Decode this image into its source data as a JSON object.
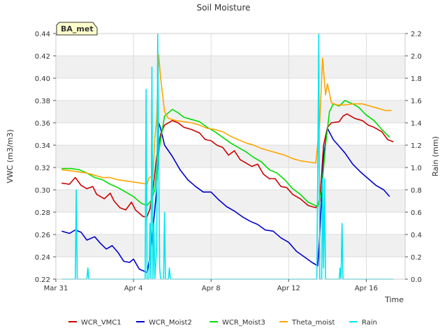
{
  "chart_data": {
    "type": "line",
    "title": "Soil Moisture",
    "xlabel": "Time",
    "ylabel": "VWC (m3/m3)",
    "y2label": "Rain (mm)",
    "badge": "BA_met",
    "x_unit": "days since Mar 31",
    "xlim": [
      0,
      18
    ],
    "ylim": [
      0.22,
      0.44
    ],
    "y2lim": [
      0.0,
      2.2
    ],
    "x_ticks": [
      {
        "x": 0,
        "label": "Mar 31"
      },
      {
        "x": 4,
        "label": "Apr 4"
      },
      {
        "x": 8,
        "label": "Apr 8"
      },
      {
        "x": 12,
        "label": "Apr 12"
      },
      {
        "x": 16,
        "label": "Apr 16"
      }
    ],
    "y_ticks": [
      "0.22",
      "0.24",
      "0.26",
      "0.28",
      "0.30",
      "0.32",
      "0.34",
      "0.36",
      "0.38",
      "0.40",
      "0.42",
      "0.44"
    ],
    "y2_ticks": [
      "0.0",
      "0.2",
      "0.4",
      "0.6",
      "0.8",
      "1.0",
      "1.2",
      "1.4",
      "1.6",
      "1.8",
      "2.0",
      "2.2"
    ],
    "grid": true,
    "legend_position": "bottom",
    "series": [
      {
        "name": "WCR_VMC1",
        "color": "#cc0000",
        "axis": "left",
        "points": [
          [
            0.3,
            0.306
          ],
          [
            0.7,
            0.305
          ],
          [
            1.0,
            0.311
          ],
          [
            1.3,
            0.304
          ],
          [
            1.6,
            0.301
          ],
          [
            1.9,
            0.303
          ],
          [
            2.1,
            0.296
          ],
          [
            2.5,
            0.292
          ],
          [
            2.8,
            0.297
          ],
          [
            3.0,
            0.29
          ],
          [
            3.3,
            0.284
          ],
          [
            3.6,
            0.282
          ],
          [
            3.9,
            0.289
          ],
          [
            4.1,
            0.282
          ],
          [
            4.5,
            0.276
          ],
          [
            4.7,
            0.276
          ],
          [
            4.85,
            0.283
          ],
          [
            5.0,
            0.3
          ],
          [
            5.2,
            0.33
          ],
          [
            5.4,
            0.35
          ],
          [
            5.6,
            0.358
          ],
          [
            6.0,
            0.362
          ],
          [
            6.3,
            0.36
          ],
          [
            6.6,
            0.356
          ],
          [
            7.0,
            0.354
          ],
          [
            7.4,
            0.351
          ],
          [
            7.7,
            0.345
          ],
          [
            8.0,
            0.344
          ],
          [
            8.3,
            0.34
          ],
          [
            8.6,
            0.338
          ],
          [
            8.9,
            0.331
          ],
          [
            9.2,
            0.335
          ],
          [
            9.5,
            0.327
          ],
          [
            9.8,
            0.324
          ],
          [
            10.1,
            0.321
          ],
          [
            10.4,
            0.323
          ],
          [
            10.7,
            0.314
          ],
          [
            11.0,
            0.31
          ],
          [
            11.3,
            0.31
          ],
          [
            11.6,
            0.303
          ],
          [
            11.9,
            0.302
          ],
          [
            12.2,
            0.296
          ],
          [
            12.6,
            0.292
          ],
          [
            13.0,
            0.286
          ],
          [
            13.4,
            0.284
          ],
          [
            13.6,
            0.29
          ],
          [
            13.8,
            0.34
          ],
          [
            14.0,
            0.356
          ],
          [
            14.2,
            0.36
          ],
          [
            14.6,
            0.361
          ],
          [
            14.8,
            0.366
          ],
          [
            15.0,
            0.368
          ],
          [
            15.4,
            0.364
          ],
          [
            15.8,
            0.362
          ],
          [
            16.1,
            0.358
          ],
          [
            16.4,
            0.356
          ],
          [
            16.8,
            0.352
          ],
          [
            17.1,
            0.345
          ],
          [
            17.4,
            0.343
          ]
        ]
      },
      {
        "name": "WCR_Moist2",
        "color": "#0000cc",
        "axis": "left",
        "points": [
          [
            0.3,
            0.263
          ],
          [
            0.7,
            0.261
          ],
          [
            1.0,
            0.264
          ],
          [
            1.3,
            0.262
          ],
          [
            1.6,
            0.255
          ],
          [
            2.0,
            0.258
          ],
          [
            2.3,
            0.252
          ],
          [
            2.6,
            0.247
          ],
          [
            2.9,
            0.25
          ],
          [
            3.2,
            0.244
          ],
          [
            3.5,
            0.236
          ],
          [
            3.8,
            0.235
          ],
          [
            4.0,
            0.238
          ],
          [
            4.3,
            0.229
          ],
          [
            4.7,
            0.226
          ],
          [
            4.85,
            0.24
          ],
          [
            5.0,
            0.265
          ],
          [
            5.2,
            0.3
          ],
          [
            5.3,
            0.36
          ],
          [
            5.4,
            0.355
          ],
          [
            5.6,
            0.34
          ],
          [
            6.0,
            0.33
          ],
          [
            6.4,
            0.318
          ],
          [
            6.8,
            0.309
          ],
          [
            7.2,
            0.303
          ],
          [
            7.6,
            0.298
          ],
          [
            8.0,
            0.298
          ],
          [
            8.4,
            0.291
          ],
          [
            8.8,
            0.285
          ],
          [
            9.2,
            0.281
          ],
          [
            9.6,
            0.276
          ],
          [
            10.0,
            0.272
          ],
          [
            10.4,
            0.269
          ],
          [
            10.8,
            0.264
          ],
          [
            11.2,
            0.263
          ],
          [
            11.6,
            0.257
          ],
          [
            12.0,
            0.253
          ],
          [
            12.4,
            0.245
          ],
          [
            12.8,
            0.24
          ],
          [
            13.2,
            0.235
          ],
          [
            13.5,
            0.232
          ],
          [
            13.6,
            0.26
          ],
          [
            13.8,
            0.33
          ],
          [
            14.0,
            0.355
          ],
          [
            14.3,
            0.345
          ],
          [
            14.6,
            0.339
          ],
          [
            14.9,
            0.333
          ],
          [
            15.3,
            0.323
          ],
          [
            15.7,
            0.316
          ],
          [
            16.1,
            0.31
          ],
          [
            16.5,
            0.304
          ],
          [
            16.9,
            0.3
          ],
          [
            17.2,
            0.294
          ]
        ]
      },
      {
        "name": "WCR_Moist3",
        "color": "#00dd00",
        "axis": "left",
        "points": [
          [
            0.3,
            0.319
          ],
          [
            0.8,
            0.319
          ],
          [
            1.2,
            0.318
          ],
          [
            1.6,
            0.315
          ],
          [
            2.0,
            0.311
          ],
          [
            2.4,
            0.309
          ],
          [
            2.8,
            0.305
          ],
          [
            3.2,
            0.302
          ],
          [
            3.6,
            0.298
          ],
          [
            4.0,
            0.294
          ],
          [
            4.4,
            0.288
          ],
          [
            4.7,
            0.286
          ],
          [
            4.9,
            0.29
          ],
          [
            5.1,
            0.3
          ],
          [
            5.2,
            0.32
          ],
          [
            5.4,
            0.345
          ],
          [
            5.6,
            0.366
          ],
          [
            6.0,
            0.372
          ],
          [
            6.3,
            0.369
          ],
          [
            6.6,
            0.365
          ],
          [
            7.0,
            0.363
          ],
          [
            7.4,
            0.361
          ],
          [
            7.8,
            0.356
          ],
          [
            8.2,
            0.352
          ],
          [
            8.6,
            0.347
          ],
          [
            9.0,
            0.342
          ],
          [
            9.4,
            0.338
          ],
          [
            9.8,
            0.334
          ],
          [
            10.2,
            0.329
          ],
          [
            10.6,
            0.325
          ],
          [
            11.0,
            0.318
          ],
          [
            11.4,
            0.315
          ],
          [
            11.8,
            0.309
          ],
          [
            12.2,
            0.301
          ],
          [
            12.6,
            0.296
          ],
          [
            13.0,
            0.289
          ],
          [
            13.5,
            0.285
          ],
          [
            13.7,
            0.3
          ],
          [
            13.9,
            0.34
          ],
          [
            14.1,
            0.37
          ],
          [
            14.3,
            0.377
          ],
          [
            14.6,
            0.375
          ],
          [
            14.9,
            0.38
          ],
          [
            15.3,
            0.377
          ],
          [
            15.6,
            0.374
          ],
          [
            16.0,
            0.367
          ],
          [
            16.4,
            0.362
          ],
          [
            16.8,
            0.354
          ],
          [
            17.2,
            0.347
          ]
        ]
      },
      {
        "name": "Theta_moist",
        "color": "#ffa500",
        "axis": "left",
        "points": [
          [
            0.3,
            0.318
          ],
          [
            0.8,
            0.317
          ],
          [
            1.2,
            0.316
          ],
          [
            1.6,
            0.315
          ],
          [
            2.0,
            0.313
          ],
          [
            2.4,
            0.311
          ],
          [
            2.8,
            0.311
          ],
          [
            3.2,
            0.309
          ],
          [
            3.6,
            0.308
          ],
          [
            4.0,
            0.307
          ],
          [
            4.4,
            0.306
          ],
          [
            4.7,
            0.305
          ],
          [
            4.8,
            0.311
          ],
          [
            5.0,
            0.312
          ],
          [
            5.1,
            0.346
          ],
          [
            5.2,
            0.365
          ],
          [
            5.3,
            0.421
          ],
          [
            5.4,
            0.4
          ],
          [
            5.6,
            0.37
          ],
          [
            5.8,
            0.364
          ],
          [
            6.2,
            0.362
          ],
          [
            6.6,
            0.361
          ],
          [
            7.0,
            0.36
          ],
          [
            7.4,
            0.358
          ],
          [
            7.8,
            0.355
          ],
          [
            8.2,
            0.354
          ],
          [
            8.6,
            0.352
          ],
          [
            9.0,
            0.348
          ],
          [
            9.4,
            0.345
          ],
          [
            9.8,
            0.342
          ],
          [
            10.2,
            0.34
          ],
          [
            10.6,
            0.337
          ],
          [
            11.0,
            0.335
          ],
          [
            11.4,
            0.333
          ],
          [
            11.8,
            0.331
          ],
          [
            12.2,
            0.328
          ],
          [
            12.6,
            0.326
          ],
          [
            13.0,
            0.325
          ],
          [
            13.4,
            0.324
          ],
          [
            13.6,
            0.36
          ],
          [
            13.75,
            0.418
          ],
          [
            13.9,
            0.385
          ],
          [
            14.0,
            0.395
          ],
          [
            14.2,
            0.378
          ],
          [
            14.5,
            0.376
          ],
          [
            14.9,
            0.376
          ],
          [
            15.3,
            0.377
          ],
          [
            15.8,
            0.377
          ],
          [
            16.2,
            0.375
          ],
          [
            16.6,
            0.373
          ],
          [
            17.0,
            0.371
          ],
          [
            17.3,
            0.371
          ]
        ]
      },
      {
        "name": "Rain",
        "color": "#00e5ee",
        "axis": "right",
        "points": [
          [
            0.3,
            0.0
          ],
          [
            1.0,
            0.0
          ],
          [
            1.05,
            0.8
          ],
          [
            1.1,
            0.0
          ],
          [
            1.6,
            0.0
          ],
          [
            1.65,
            0.1
          ],
          [
            1.7,
            0.0
          ],
          [
            4.6,
            0.0
          ],
          [
            4.65,
            1.7
          ],
          [
            4.7,
            0.0
          ],
          [
            4.8,
            0.0
          ],
          [
            4.85,
            0.5
          ],
          [
            4.9,
            0.0
          ],
          [
            4.95,
            1.9
          ],
          [
            5.0,
            0.0
          ],
          [
            5.05,
            0.5
          ],
          [
            5.1,
            0.0
          ],
          [
            5.2,
            0.3
          ],
          [
            5.25,
            2.2
          ],
          [
            5.3,
            1.1
          ],
          [
            5.35,
            0.1
          ],
          [
            5.4,
            0.0
          ],
          [
            5.55,
            0.0
          ],
          [
            5.6,
            0.6
          ],
          [
            5.65,
            0.0
          ],
          [
            5.8,
            0.0
          ],
          [
            5.85,
            0.1
          ],
          [
            5.9,
            0.0
          ],
          [
            13.45,
            0.0
          ],
          [
            13.5,
            1.0
          ],
          [
            13.55,
            2.2
          ],
          [
            13.6,
            0.0
          ],
          [
            13.7,
            0.0
          ],
          [
            13.75,
            0.9
          ],
          [
            13.8,
            0.1
          ],
          [
            13.85,
            0.9
          ],
          [
            13.9,
            0.0
          ],
          [
            14.6,
            0.0
          ],
          [
            14.65,
            0.1
          ],
          [
            14.7,
            0.0
          ],
          [
            14.75,
            0.5
          ],
          [
            14.8,
            0.0
          ],
          [
            17.4,
            0.0
          ]
        ]
      }
    ]
  }
}
